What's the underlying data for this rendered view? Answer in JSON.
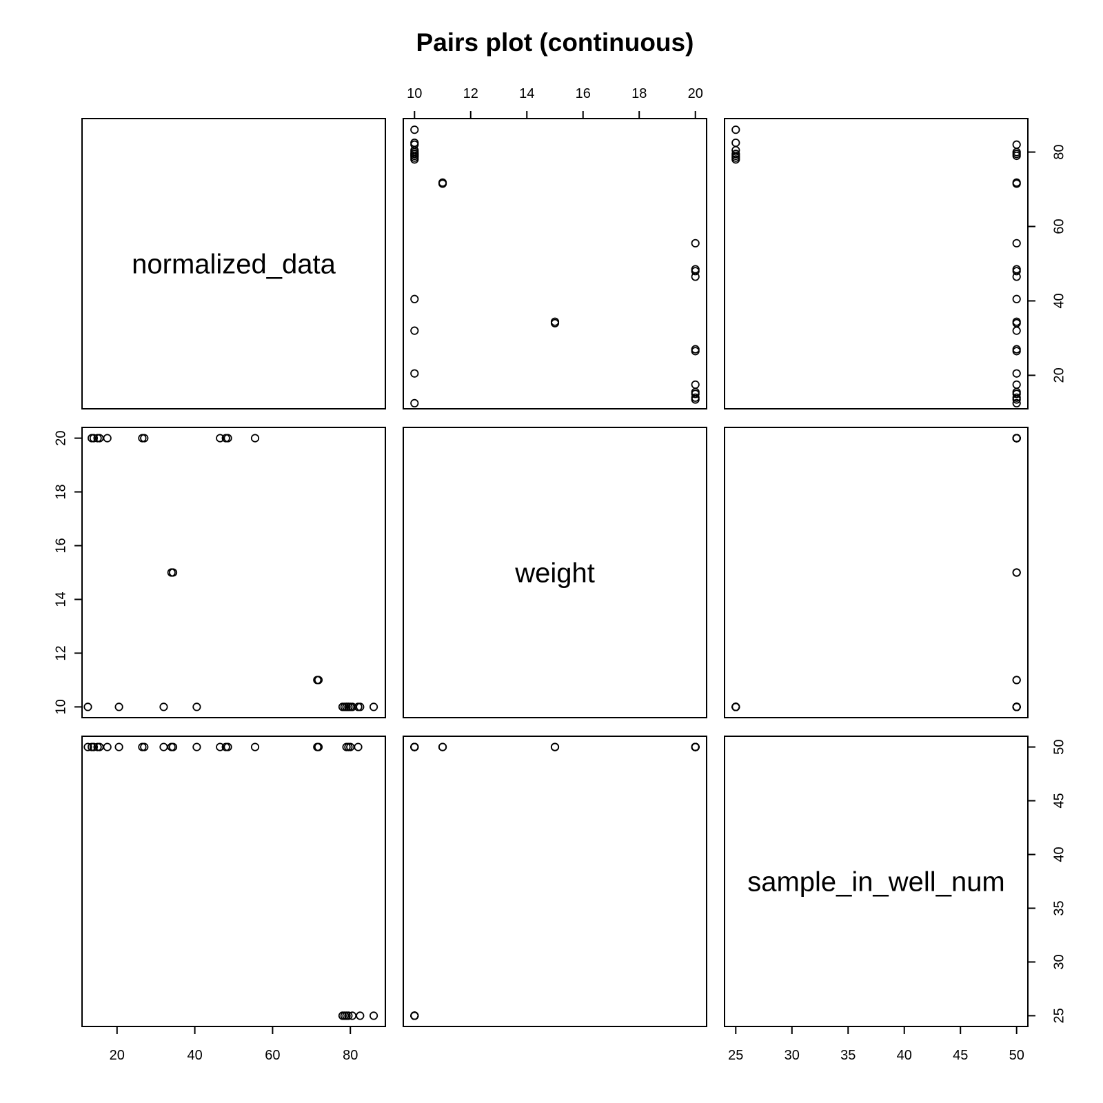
{
  "chart_data": {
    "type": "scatter",
    "title": "Pairs plot (continuous)",
    "variables": [
      "normalized_data",
      "weight",
      "sample_in_well_num"
    ],
    "ranges": {
      "normalized_data": [
        11,
        89
      ],
      "weight": [
        9.6,
        20.4
      ],
      "sample_in_well_num": [
        24,
        51
      ]
    },
    "ticks": {
      "normalized_data": [
        20,
        40,
        60,
        80
      ],
      "weight": [
        10,
        12,
        14,
        16,
        18,
        20
      ],
      "sample_in_well_num": [
        25,
        30,
        35,
        40,
        45,
        50
      ]
    },
    "tick_labels": {
      "normalized_data": [
        "20",
        "40",
        "60",
        "80"
      ],
      "weight": [
        "10",
        "12",
        "14",
        "16",
        "18",
        "20"
      ],
      "sample_in_well_num": [
        "25",
        "30",
        "35",
        "40",
        "45",
        "50"
      ]
    },
    "observations": [
      {
        "normalized_data": 86,
        "weight": 10,
        "sample_in_well_num": 25
      },
      {
        "normalized_data": 82.5,
        "weight": 10,
        "sample_in_well_num": 25
      },
      {
        "normalized_data": 80.5,
        "weight": 10,
        "sample_in_well_num": 25
      },
      {
        "normalized_data": 79.5,
        "weight": 10,
        "sample_in_well_num": 25
      },
      {
        "normalized_data": 79,
        "weight": 10,
        "sample_in_well_num": 25
      },
      {
        "normalized_data": 78.5,
        "weight": 10,
        "sample_in_well_num": 25
      },
      {
        "normalized_data": 78,
        "weight": 10,
        "sample_in_well_num": 25
      },
      {
        "normalized_data": 82,
        "weight": 10,
        "sample_in_well_num": 50
      },
      {
        "normalized_data": 80,
        "weight": 10,
        "sample_in_well_num": 50
      },
      {
        "normalized_data": 79.5,
        "weight": 10,
        "sample_in_well_num": 50
      },
      {
        "normalized_data": 79,
        "weight": 10,
        "sample_in_well_num": 50
      },
      {
        "normalized_data": 40.5,
        "weight": 10,
        "sample_in_well_num": 50
      },
      {
        "normalized_data": 32,
        "weight": 10,
        "sample_in_well_num": 50
      },
      {
        "normalized_data": 20.5,
        "weight": 10,
        "sample_in_well_num": 50
      },
      {
        "normalized_data": 12.5,
        "weight": 10,
        "sample_in_well_num": 50
      },
      {
        "normalized_data": 71.5,
        "weight": 11,
        "sample_in_well_num": 50
      },
      {
        "normalized_data": 71.8,
        "weight": 11,
        "sample_in_well_num": 50
      },
      {
        "normalized_data": 34,
        "weight": 15,
        "sample_in_well_num": 50
      },
      {
        "normalized_data": 34.4,
        "weight": 15,
        "sample_in_well_num": 50
      },
      {
        "normalized_data": 55.5,
        "weight": 20,
        "sample_in_well_num": 50
      },
      {
        "normalized_data": 48.5,
        "weight": 20,
        "sample_in_well_num": 50
      },
      {
        "normalized_data": 48,
        "weight": 20,
        "sample_in_well_num": 50
      },
      {
        "normalized_data": 46.5,
        "weight": 20,
        "sample_in_well_num": 50
      },
      {
        "normalized_data": 27,
        "weight": 20,
        "sample_in_well_num": 50
      },
      {
        "normalized_data": 26.5,
        "weight": 20,
        "sample_in_well_num": 50
      },
      {
        "normalized_data": 17.5,
        "weight": 20,
        "sample_in_well_num": 50
      },
      {
        "normalized_data": 15.5,
        "weight": 20,
        "sample_in_well_num": 50
      },
      {
        "normalized_data": 15,
        "weight": 20,
        "sample_in_well_num": 50
      },
      {
        "normalized_data": 14,
        "weight": 20,
        "sample_in_well_num": 50
      },
      {
        "normalized_data": 13.5,
        "weight": 20,
        "sample_in_well_num": 50
      }
    ]
  }
}
